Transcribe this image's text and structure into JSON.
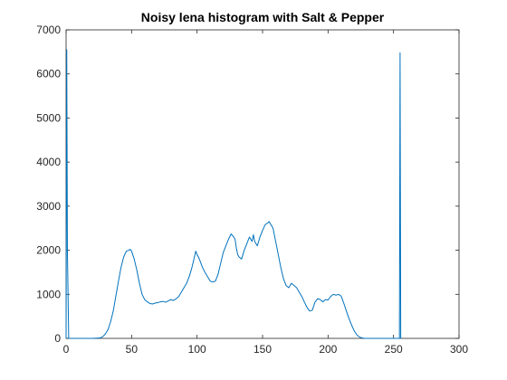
{
  "chart_data": {
    "type": "line",
    "title": "Noisy lena histogram with Salt & Pepper",
    "xlabel": "",
    "ylabel": "",
    "xlim": [
      0,
      300
    ],
    "ylim": [
      0,
      7000
    ],
    "xticks": [
      0,
      50,
      100,
      150,
      200,
      250,
      300
    ],
    "yticks": [
      0,
      1000,
      2000,
      3000,
      4000,
      5000,
      6000,
      7000
    ],
    "grid": false,
    "line_color": "#0072BD",
    "series": [
      {
        "name": "",
        "x": [
          0,
          0.5,
          1,
          2,
          5,
          10,
          20,
          26,
          28,
          30,
          32,
          34,
          36,
          38,
          40,
          42,
          44,
          46,
          48,
          49,
          50,
          52,
          54,
          56,
          58,
          60,
          62,
          64,
          66,
          68,
          70,
          72,
          74,
          76,
          78,
          80,
          82,
          84,
          86,
          88,
          90,
          92,
          94,
          96,
          98,
          99,
          100,
          101,
          102,
          104,
          106,
          108,
          110,
          112,
          114,
          116,
          118,
          120,
          122,
          124,
          126,
          128,
          129,
          130,
          131,
          132,
          134,
          136,
          138,
          140,
          142,
          143,
          144,
          146,
          148,
          150,
          152,
          154,
          155,
          156,
          157,
          158,
          160,
          162,
          164,
          166,
          168,
          170,
          172,
          174,
          176,
          178,
          180,
          182,
          184,
          186,
          188,
          190,
          192,
          194,
          196,
          198,
          200,
          202,
          204,
          206,
          208,
          210,
          212,
          214,
          216,
          218,
          220,
          222,
          224,
          226,
          228,
          230,
          232,
          234,
          236,
          238,
          240,
          242,
          244,
          246,
          248,
          250,
          252,
          254,
          254.5,
          255,
          255.5,
          256
        ],
        "values": [
          0,
          6550,
          2000,
          0,
          0,
          0,
          0,
          10,
          40,
          100,
          200,
          380,
          620,
          960,
          1300,
          1620,
          1850,
          1980,
          2000,
          2020,
          1980,
          1800,
          1550,
          1250,
          1000,
          880,
          830,
          790,
          780,
          800,
          810,
          830,
          840,
          820,
          850,
          880,
          860,
          900,
          950,
          1050,
          1150,
          1250,
          1400,
          1600,
          1850,
          1980,
          1900,
          1850,
          1780,
          1620,
          1500,
          1400,
          1300,
          1280,
          1300,
          1450,
          1700,
          1950,
          2100,
          2250,
          2370,
          2300,
          2250,
          2050,
          1900,
          1850,
          1800,
          2000,
          2150,
          2300,
          2200,
          2350,
          2200,
          2100,
          2300,
          2450,
          2580,
          2620,
          2650,
          2600,
          2550,
          2500,
          2200,
          1900,
          1600,
          1350,
          1200,
          1150,
          1250,
          1200,
          1150,
          1050,
          950,
          820,
          700,
          620,
          640,
          820,
          900,
          880,
          830,
          880,
          870,
          950,
          1000,
          980,
          1000,
          960,
          800,
          620,
          450,
          300,
          170,
          80,
          30,
          10,
          0,
          0,
          0,
          0,
          0,
          0,
          0,
          0,
          0,
          0,
          0,
          0,
          0,
          0,
          0,
          6480,
          0,
          0
        ]
      }
    ]
  }
}
